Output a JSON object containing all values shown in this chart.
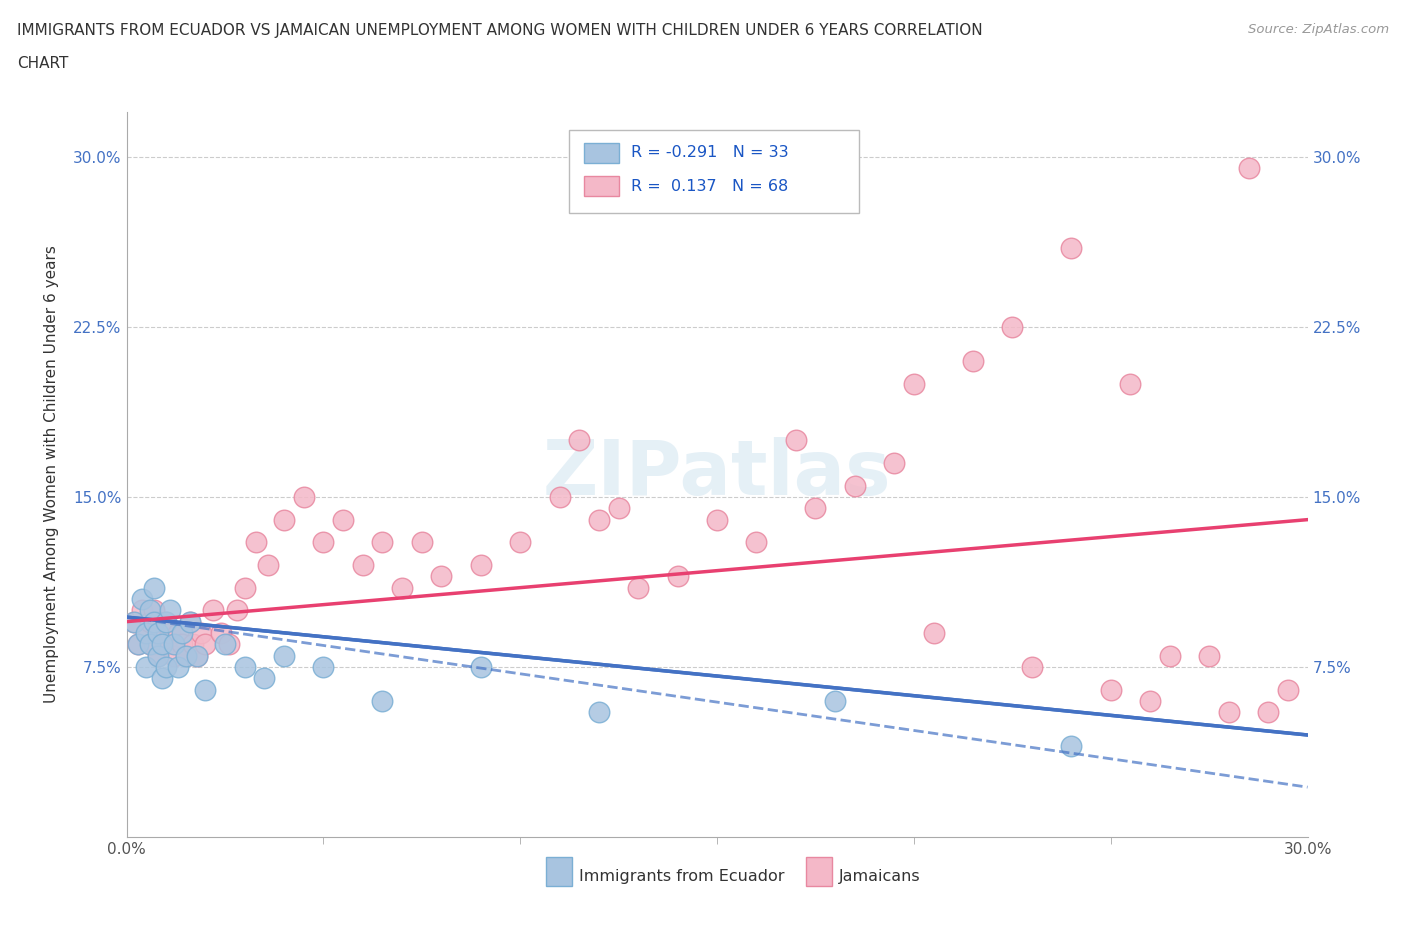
{
  "title_line1": "IMMIGRANTS FROM ECUADOR VS JAMAICAN UNEMPLOYMENT AMONG WOMEN WITH CHILDREN UNDER 6 YEARS CORRELATION",
  "title_line2": "CHART",
  "source": "Source: ZipAtlas.com",
  "ylabel": "Unemployment Among Women with Children Under 6 years",
  "xlim": [
    0.0,
    0.3
  ],
  "ylim": [
    0.0,
    0.32
  ],
  "x_ticks": [
    0.0,
    0.3
  ],
  "x_tick_labels": [
    "0.0%",
    "30.0%"
  ],
  "y_ticks": [
    0.075,
    0.15,
    0.225,
    0.3
  ],
  "y_tick_labels": [
    "7.5%",
    "15.0%",
    "22.5%",
    "30.0%"
  ],
  "watermark": "ZIPatlas",
  "ecuador_color": "#a8c4e0",
  "ecuador_edge": "#7bafd4",
  "ecuador_line_color": "#4472c4",
  "jamaican_color": "#f4b8c8",
  "jamaican_edge": "#e888a0",
  "jamaican_line_color": "#e84070",
  "ecuador_x": [
    0.002,
    0.003,
    0.004,
    0.005,
    0.005,
    0.006,
    0.006,
    0.007,
    0.007,
    0.008,
    0.008,
    0.009,
    0.009,
    0.01,
    0.01,
    0.011,
    0.012,
    0.013,
    0.014,
    0.015,
    0.016,
    0.018,
    0.02,
    0.025,
    0.03,
    0.035,
    0.04,
    0.05,
    0.065,
    0.09,
    0.12,
    0.18,
    0.24
  ],
  "ecuador_y": [
    0.095,
    0.085,
    0.105,
    0.09,
    0.075,
    0.1,
    0.085,
    0.11,
    0.095,
    0.09,
    0.08,
    0.085,
    0.07,
    0.095,
    0.075,
    0.1,
    0.085,
    0.075,
    0.09,
    0.08,
    0.095,
    0.08,
    0.065,
    0.085,
    0.075,
    0.07,
    0.08,
    0.075,
    0.06,
    0.075,
    0.055,
    0.06,
    0.04
  ],
  "jamaican_x": [
    0.002,
    0.003,
    0.004,
    0.005,
    0.006,
    0.006,
    0.007,
    0.007,
    0.008,
    0.008,
    0.009,
    0.01,
    0.01,
    0.011,
    0.012,
    0.013,
    0.014,
    0.015,
    0.016,
    0.017,
    0.018,
    0.019,
    0.02,
    0.022,
    0.024,
    0.026,
    0.028,
    0.03,
    0.033,
    0.036,
    0.04,
    0.045,
    0.05,
    0.055,
    0.06,
    0.065,
    0.07,
    0.08,
    0.09,
    0.1,
    0.11,
    0.12,
    0.13,
    0.14,
    0.15,
    0.16,
    0.17,
    0.185,
    0.2,
    0.215,
    0.225,
    0.24,
    0.255,
    0.265,
    0.275,
    0.285,
    0.29,
    0.295,
    0.115,
    0.125,
    0.075,
    0.175,
    0.195,
    0.205,
    0.23,
    0.25,
    0.26,
    0.28
  ],
  "jamaican_y": [
    0.095,
    0.085,
    0.1,
    0.09,
    0.095,
    0.085,
    0.1,
    0.085,
    0.095,
    0.08,
    0.09,
    0.085,
    0.095,
    0.09,
    0.08,
    0.09,
    0.085,
    0.08,
    0.095,
    0.085,
    0.08,
    0.09,
    0.085,
    0.1,
    0.09,
    0.085,
    0.1,
    0.11,
    0.13,
    0.12,
    0.14,
    0.15,
    0.13,
    0.14,
    0.12,
    0.13,
    0.11,
    0.115,
    0.12,
    0.13,
    0.15,
    0.14,
    0.11,
    0.115,
    0.14,
    0.13,
    0.175,
    0.155,
    0.2,
    0.21,
    0.225,
    0.26,
    0.2,
    0.08,
    0.08,
    0.295,
    0.055,
    0.065,
    0.175,
    0.145,
    0.13,
    0.145,
    0.165,
    0.09,
    0.075,
    0.065,
    0.06,
    0.055
  ],
  "ec_line_x0": 0.0,
  "ec_line_x1": 0.3,
  "ec_line_y0": 0.097,
  "ec_line_y1": 0.045,
  "ec_line_dash_y0": 0.045,
  "ec_line_dash_y1": 0.022,
  "jam_line_x0": 0.0,
  "jam_line_x1": 0.3,
  "jam_line_y0": 0.095,
  "jam_line_y1": 0.14,
  "tick_color": "#4472c4",
  "tick_fontsize": 11,
  "grid_color": "#cccccc",
  "spine_color": "#aaaaaa",
  "title_fontsize": 11,
  "ylabel_fontsize": 11
}
